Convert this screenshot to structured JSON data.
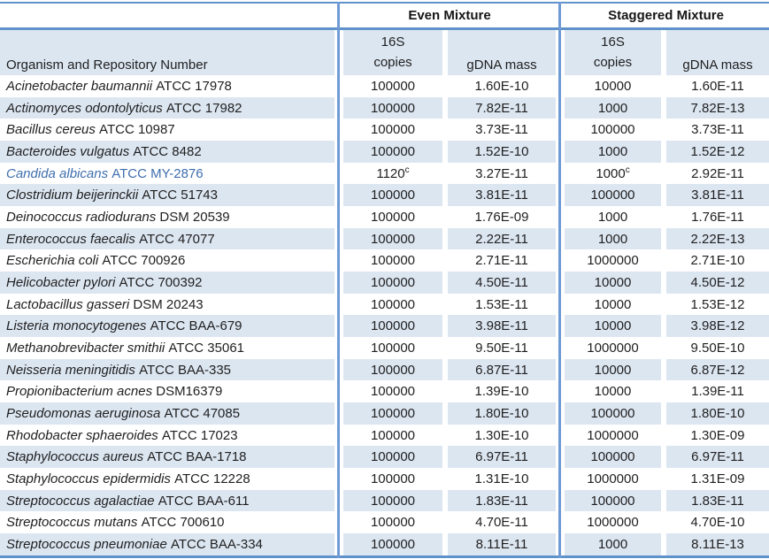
{
  "table": {
    "sections": {
      "even": "Even Mixture",
      "staggered": "Staggered Mixture"
    },
    "headers": {
      "organism": "Organism and Repository Number",
      "copies_line1": "16S",
      "copies_line2": "copies",
      "gdna": "gDNA mass"
    },
    "colors": {
      "stripe": "#dce6f1",
      "border_strong": "#5f92cb",
      "border_vertical": "#6f9bd5",
      "highlight_text": "#3f6fae",
      "text": "#1f1f1f"
    },
    "footnote_marker": "c",
    "rows": [
      {
        "organism": "Acinetobacter baumannii",
        "repo": "ATCC 17978",
        "even_copies": "100000",
        "even_mass": "1.60E-10",
        "stag_copies": "10000",
        "stag_mass": "1.60E-11",
        "highlight": false
      },
      {
        "organism": "Actinomyces odontolyticus",
        "repo": "ATCC 17982",
        "even_copies": "100000",
        "even_mass": "7.82E-11",
        "stag_copies": "1000",
        "stag_mass": "7.82E-13",
        "highlight": false
      },
      {
        "organism": "Bacillus cereus",
        "repo": "ATCC 10987",
        "even_copies": "100000",
        "even_mass": "3.73E-11",
        "stag_copies": "100000",
        "stag_mass": "3.73E-11",
        "highlight": false
      },
      {
        "organism": "Bacteroides vulgatus",
        "repo": "ATCC 8482",
        "even_copies": "100000",
        "even_mass": "1.52E-10",
        "stag_copies": "1000",
        "stag_mass": "1.52E-12",
        "highlight": false
      },
      {
        "organism": "Candida albicans",
        "repo": "ATCC MY-2876",
        "even_copies": "1120",
        "even_copies_sup": "c",
        "even_mass": "3.27E-11",
        "stag_copies": "1000",
        "stag_copies_sup": "c",
        "stag_mass": "2.92E-11",
        "highlight": true
      },
      {
        "organism": "Clostridium beijerinckii",
        "repo": "ATCC 51743",
        "even_copies": "100000",
        "even_mass": "3.81E-11",
        "stag_copies": "100000",
        "stag_mass": "3.81E-11",
        "highlight": false
      },
      {
        "organism": "Deinococcus radiodurans",
        "repo": "DSM 20539",
        "even_copies": "100000",
        "even_mass": "1.76E-09",
        "stag_copies": "1000",
        "stag_mass": "1.76E-11",
        "highlight": false
      },
      {
        "organism": "Enterococcus faecalis",
        "repo": "ATCC 47077",
        "even_copies": "100000",
        "even_mass": "2.22E-11",
        "stag_copies": "1000",
        "stag_mass": "2.22E-13",
        "highlight": false
      },
      {
        "organism": "Escherichia coli",
        "repo": "ATCC 700926",
        "even_copies": "100000",
        "even_mass": "2.71E-11",
        "stag_copies": "1000000",
        "stag_mass": "2.71E-10",
        "highlight": false
      },
      {
        "organism": "Helicobacter pylori",
        "repo": "ATCC 700392",
        "even_copies": "100000",
        "even_mass": "4.50E-11",
        "stag_copies": "10000",
        "stag_mass": "4.50E-12",
        "highlight": false
      },
      {
        "organism": "Lactobacillus gasseri",
        "repo": "DSM 20243",
        "even_copies": "100000",
        "even_mass": "1.53E-11",
        "stag_copies": "10000",
        "stag_mass": "1.53E-12",
        "highlight": false
      },
      {
        "organism": "Listeria monocytogenes",
        "repo": "ATCC BAA-679",
        "even_copies": "100000",
        "even_mass": "3.98E-11",
        "stag_copies": "10000",
        "stag_mass": "3.98E-12",
        "highlight": false
      },
      {
        "organism": "Methanobrevibacter smithii",
        "repo": "ATCC 35061",
        "even_copies": "100000",
        "even_mass": "9.50E-11",
        "stag_copies": "1000000",
        "stag_mass": "9.50E-10",
        "highlight": false
      },
      {
        "organism": "Neisseria meningitidis",
        "repo": "ATCC BAA-335",
        "even_copies": "100000",
        "even_mass": "6.87E-11",
        "stag_copies": "10000",
        "stag_mass": "6.87E-12",
        "highlight": false
      },
      {
        "organism": "Propionibacterium acnes",
        "repo": "DSM16379",
        "even_copies": "100000",
        "even_mass": "1.39E-10",
        "stag_copies": "10000",
        "stag_mass": "1.39E-11",
        "highlight": false
      },
      {
        "organism": "Pseudomonas aeruginosa",
        "repo": "ATCC 47085",
        "even_copies": "100000",
        "even_mass": "1.80E-10",
        "stag_copies": "100000",
        "stag_mass": "1.80E-10",
        "highlight": false
      },
      {
        "organism": "Rhodobacter sphaeroides",
        "repo": "ATCC 17023",
        "even_copies": "100000",
        "even_mass": "1.30E-10",
        "stag_copies": "1000000",
        "stag_mass": "1.30E-09",
        "highlight": false
      },
      {
        "organism": "Staphylococcus aureus",
        "repo": "ATCC BAA-1718",
        "even_copies": "100000",
        "even_mass": "6.97E-11",
        "stag_copies": "100000",
        "stag_mass": "6.97E-11",
        "highlight": false
      },
      {
        "organism": "Staphylococcus epidermidis",
        "repo": "ATCC 12228",
        "even_copies": "100000",
        "even_mass": "1.31E-10",
        "stag_copies": "1000000",
        "stag_mass": "1.31E-09",
        "highlight": false
      },
      {
        "organism": "Streptococcus agalactiae",
        "repo": "ATCC BAA-611",
        "even_copies": "100000",
        "even_mass": "1.83E-11",
        "stag_copies": "100000",
        "stag_mass": "1.83E-11",
        "highlight": false
      },
      {
        "organism": "Streptococcus mutans",
        "repo": "ATCC 700610",
        "even_copies": "100000",
        "even_mass": "4.70E-11",
        "stag_copies": "1000000",
        "stag_mass": "4.70E-10",
        "highlight": false
      },
      {
        "organism": "Streptococcus pneumoniae",
        "repo": "ATCC BAA-334",
        "even_copies": "100000",
        "even_mass": "8.11E-11",
        "stag_copies": "1000",
        "stag_mass": "8.11E-13",
        "highlight": false
      }
    ]
  }
}
